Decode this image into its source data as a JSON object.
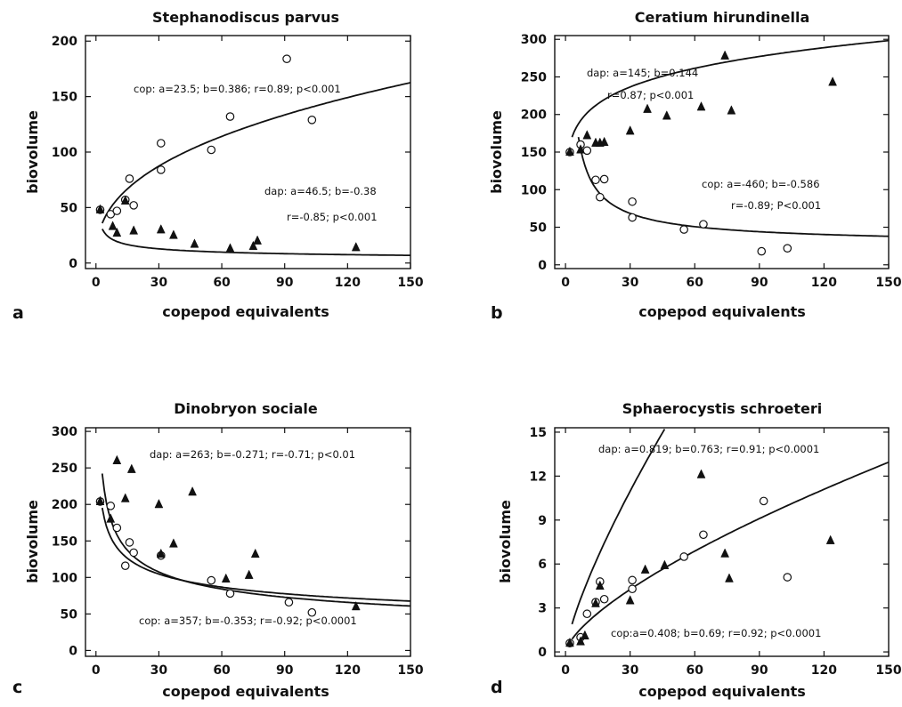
{
  "chart_data": [
    {
      "panel": "a",
      "type": "scatter",
      "title": "Stephanodiscus parvus",
      "xlabel": "copepod equivalents",
      "ylabel": "biovolume",
      "xlim": [
        -5,
        150
      ],
      "ylim": [
        -5,
        205
      ],
      "xticks": [
        0,
        30,
        60,
        90,
        120,
        150
      ],
      "xtick_labels": [
        "0",
        "30",
        "60",
        "90",
        "120",
        "150"
      ],
      "yticks": [
        0,
        50,
        100,
        150,
        200
      ],
      "ytick_labels": [
        "0",
        "50",
        "100",
        "150",
        "200"
      ],
      "annotations": [
        "cop: a=23.5; b=0.386; r=0.89; p<0.001",
        "dap: a=46.5; b=-0.38",
        "r=-0.85; p<0.001"
      ],
      "series": [
        {
          "marker": "circle",
          "fit": {
            "a": 23.5,
            "b": 0.386
          },
          "points": [
            [
              2,
              48
            ],
            [
              7,
              44
            ],
            [
              10,
              47
            ],
            [
              14,
              57
            ],
            [
              16,
              76
            ],
            [
              18,
              52
            ],
            [
              31,
              108
            ],
            [
              31,
              84
            ],
            [
              55,
              102
            ],
            [
              64,
              132
            ],
            [
              91,
              184
            ],
            [
              103,
              129
            ]
          ]
        },
        {
          "marker": "triangle",
          "fit": {
            "a": 46.5,
            "b": -0.38
          },
          "points": [
            [
              2,
              48
            ],
            [
              8,
              33
            ],
            [
              10,
              27
            ],
            [
              14,
              56
            ],
            [
              18,
              29
            ],
            [
              31,
              30
            ],
            [
              37,
              25
            ],
            [
              47,
              17
            ],
            [
              64,
              13
            ],
            [
              75,
              15
            ],
            [
              77,
              20
            ],
            [
              124,
              14
            ]
          ]
        }
      ]
    },
    {
      "panel": "b",
      "type": "scatter",
      "title": "Ceratium hirundinella",
      "xlabel": "copepod equivalents",
      "ylabel": "biovolume",
      "xlim": [
        -5,
        150
      ],
      "ylim": [
        -5,
        305
      ],
      "xticks": [
        0,
        30,
        60,
        90,
        120,
        150
      ],
      "xtick_labels": [
        "0",
        "30",
        "60",
        "90",
        "120",
        "150"
      ],
      "yticks": [
        0,
        50,
        100,
        150,
        200,
        250,
        300
      ],
      "ytick_labels": [
        "0",
        "50",
        "100",
        "150",
        "200",
        "250",
        "300"
      ],
      "annotations": [
        "dap: a=145; b=0.144",
        "r=0.87; p<0.001",
        "cop: a=-460; b=-0.586",
        "r=-0.89; P<0.001"
      ],
      "series": [
        {
          "marker": "circle",
          "fit": {
            "a": -460,
            "b": -0.586
          },
          "points": [
            [
              2,
              150
            ],
            [
              7,
              160
            ],
            [
              10,
              152
            ],
            [
              14,
              113
            ],
            [
              16,
              90
            ],
            [
              18,
              114
            ],
            [
              31,
              84
            ],
            [
              31,
              63
            ],
            [
              55,
              47
            ],
            [
              64,
              54
            ],
            [
              91,
              18
            ],
            [
              103,
              22
            ]
          ]
        },
        {
          "marker": "triangle",
          "fit": {
            "a": 145,
            "b": 0.144
          },
          "points": [
            [
              2,
              150
            ],
            [
              7,
              153
            ],
            [
              10,
              172
            ],
            [
              14,
              162
            ],
            [
              16,
              162
            ],
            [
              18,
              163
            ],
            [
              30,
              178
            ],
            [
              38,
              207
            ],
            [
              47,
              198
            ],
            [
              63,
              210
            ],
            [
              74,
              278
            ],
            [
              77,
              205
            ],
            [
              124,
              243
            ]
          ]
        }
      ]
    },
    {
      "panel": "c",
      "type": "scatter",
      "title": "Dinobryon sociale",
      "xlabel": "copepod equivalents",
      "ylabel": "biovolume",
      "xlim": [
        -5,
        150
      ],
      "ylim": [
        -8,
        305
      ],
      "xticks": [
        0,
        30,
        60,
        90,
        120,
        150
      ],
      "xtick_labels": [
        "0",
        "30",
        "60",
        "90",
        "120",
        "150"
      ],
      "yticks": [
        0,
        50,
        100,
        150,
        200,
        250,
        300
      ],
      "ytick_labels": [
        "0",
        "50",
        "100",
        "150",
        "200",
        "250",
        "300"
      ],
      "annotations": [
        "dap: a=263; b=-0.271; r=-0.71; p<0.01",
        "cop: a=357; b=-0.353;  r=-0.92; p<0.0001"
      ],
      "series": [
        {
          "marker": "circle",
          "fit": {
            "a": 357,
            "b": -0.353
          },
          "points": [
            [
              2,
              204
            ],
            [
              7,
              198
            ],
            [
              10,
              168
            ],
            [
              14,
              116
            ],
            [
              16,
              148
            ],
            [
              18,
              134
            ],
            [
              31,
              130
            ],
            [
              55,
              96
            ],
            [
              64,
              78
            ],
            [
              92,
              66
            ],
            [
              103,
              52
            ]
          ]
        },
        {
          "marker": "triangle",
          "fit": {
            "a": 263,
            "b": -0.271
          },
          "points": [
            [
              2,
              204
            ],
            [
              7,
              180
            ],
            [
              10,
              260
            ],
            [
              14,
              208
            ],
            [
              17,
              248
            ],
            [
              30,
              200
            ],
            [
              31,
              132
            ],
            [
              37,
              146
            ],
            [
              46,
              217
            ],
            [
              62,
              98
            ],
            [
              73,
              103
            ],
            [
              76,
              132
            ],
            [
              124,
              60
            ]
          ]
        }
      ]
    },
    {
      "panel": "d",
      "type": "scatter",
      "title": "Sphaerocystis schroeteri",
      "xlabel": "copepod equivalents",
      "ylabel": "biovolume",
      "xlim": [
        -5,
        150
      ],
      "ylim": [
        -0.3,
        15.3
      ],
      "xticks": [
        0,
        30,
        60,
        90,
        120,
        150
      ],
      "xtick_labels": [
        "0",
        "30",
        "60",
        "90",
        "120",
        "150"
      ],
      "yticks": [
        0,
        3,
        6,
        9,
        12,
        15
      ],
      "ytick_labels": [
        "0",
        "3",
        "6",
        "9",
        "12",
        "15"
      ],
      "annotations": [
        "dap: a=0.819; b=0.763; r=0.91; p<0.0001",
        "cop:a=0.408; b=0.69; r=0.92; p<0.0001"
      ],
      "series": [
        {
          "marker": "circle",
          "fit": {
            "a": 0.408,
            "b": 0.69
          },
          "points": [
            [
              2,
              0.6
            ],
            [
              7,
              1.0
            ],
            [
              10,
              2.6
            ],
            [
              14,
              3.4
            ],
            [
              16,
              4.8
            ],
            [
              18,
              3.6
            ],
            [
              31,
              4.9
            ],
            [
              31,
              4.3
            ],
            [
              55,
              6.5
            ],
            [
              64,
              8.0
            ],
            [
              92,
              10.3
            ],
            [
              103,
              5.1
            ]
          ]
        },
        {
          "marker": "triangle",
          "fit": {
            "a": 0.819,
            "b": 0.763
          },
          "points": [
            [
              2,
              0.6
            ],
            [
              7,
              0.7
            ],
            [
              9,
              1.1
            ],
            [
              14,
              3.3
            ],
            [
              16,
              4.5
            ],
            [
              30,
              3.5
            ],
            [
              37,
              5.6
            ],
            [
              46,
              5.9
            ],
            [
              63,
              12.1
            ],
            [
              74,
              6.7
            ],
            [
              76,
              5.0
            ],
            [
              123,
              7.6
            ]
          ]
        }
      ]
    }
  ]
}
